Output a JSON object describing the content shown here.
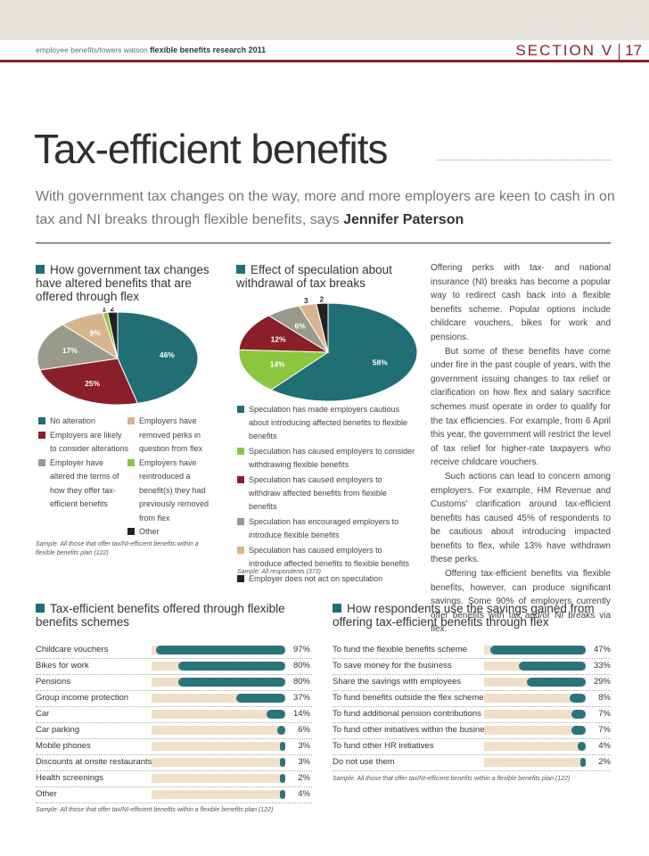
{
  "header": {
    "publication": "employee benefits/towers watson",
    "report": "flexible benefits research 2011",
    "section": "SECTION V",
    "page": "17"
  },
  "title": "Tax-efficient benefits",
  "standfirst": {
    "text": "With government tax changes on the way, more and more employers are keen to cash in on tax and NI breaks through flexible benefits, says",
    "author": "Jennifer Paterson"
  },
  "chart_data": [
    {
      "type": "pie",
      "title": "How government tax changes have altered benefits that are offered through flex",
      "slices": [
        {
          "label": "No alteration",
          "value": 46,
          "color": "#1f6f75",
          "text": "46%"
        },
        {
          "label": "Employers are likely to consider alterations",
          "value": 25,
          "color": "#8a1f2a",
          "text": "25%"
        },
        {
          "label": "Employer have altered the terms of how they offer tax-efficient benefits",
          "value": 17,
          "color": "#9a9a8c",
          "text": "17%"
        },
        {
          "label": "Employers have removed perks in question from flex",
          "value": 9,
          "color": "#d8b48e",
          "text": "9%"
        },
        {
          "label": "Employers have reintroduced a benefit(s) they had previously removed from flex",
          "value": 1,
          "color": "#8cc63f",
          "text": "1"
        },
        {
          "label": "Other",
          "value": 2,
          "color": "#222222",
          "text": "2"
        }
      ],
      "sample": "Sample: All those that offer tax/NI-efficient benefits within a flexible benefits plan (122)"
    },
    {
      "type": "pie",
      "title": "Effect of speculation about withdrawal of tax breaks",
      "slices": [
        {
          "label": "Speculation has made employers cautious about introducing affected benefits to flexible benefits",
          "value": 58,
          "color": "#1f6f75",
          "text": "58%"
        },
        {
          "label": "Speculation has caused employers to consider withdrawing flexible benefits",
          "value": 14,
          "color": "#8cc63f",
          "text": "14%"
        },
        {
          "label": "Speculation has caused employers to withdraw affected benefits from flexible benefits",
          "value": 12,
          "color": "#8a1f2a",
          "text": "12%"
        },
        {
          "label": "Speculation has encouraged employers to introduce flexible benefits",
          "value": 6,
          "color": "#9a9a8c",
          "text": "6%"
        },
        {
          "label": "Speculation has caused employers to introduce affected benefits to flexible benefits",
          "value": 3,
          "color": "#d8b48e",
          "text": "3"
        },
        {
          "label": "Employer does not act on speculation",
          "value": 2,
          "color": "#222222",
          "text": "2"
        }
      ],
      "sample": "Sample: All respondents (373)"
    },
    {
      "type": "bar",
      "title": "Tax-efficient benefits offered through flexible benefits schemes",
      "categories": [
        "Childcare vouchers",
        "Bikes for work",
        "Pensions",
        "Group income protection",
        "Car",
        "Car parking",
        "Mobile phones",
        "Discounts at onsite restaurants",
        "Health screenings",
        "Other"
      ],
      "values": [
        97,
        80,
        80,
        37,
        14,
        6,
        3,
        3,
        2,
        4
      ],
      "unit": "%",
      "xlim": [
        0,
        100
      ],
      "sample": "Sample: All those that offer tax/NI-efficient benefits within a flexible benefits plan (122)"
    },
    {
      "type": "bar",
      "title": "How respondents use the savings gained from offering tax-efficient benefits through flex",
      "categories": [
        "To fund the flexible benefits scheme",
        "To save money for the business",
        "Share the savings with employees",
        "To fund benefits outside the flex scheme",
        "To fund additional pension contributions",
        "To fund other initiatives within the business",
        "To fund other HR initiatives",
        "Do not use them"
      ],
      "values": [
        47,
        33,
        29,
        8,
        7,
        7,
        4,
        2
      ],
      "unit": "%",
      "xlim": [
        0,
        50
      ],
      "sample": "Sample: All those that offer tax/NI-efficient benefits within a flexible benefits plan (122)"
    }
  ],
  "legend1": {
    "col1": [
      "No alteration",
      "Employers are likely to consider alterations",
      "Employer have altered the terms of how they offer tax-efficient benefits"
    ],
    "col2": [
      "Employers have removed perks in question from flex",
      "Employers have reintroduced a benefit(s) they had previously removed from flex",
      "Other"
    ]
  },
  "body": [
    "Offering perks with tax- and national insurance (NI) breaks has become a popular way to redirect cash back into a flexible benefits scheme. Popular options include childcare vouchers, bikes for work and pensions.",
    "But some of these benefits have come under fire in the past couple of years, with the government issuing changes to tax relief or clarification on how flex and salary sacrifice schemes must operate in order to qualify for the tax efficiencies. For example, from 6 April this year, the government will restrict the level of tax relief for higher-rate taxpayers who receive childcare vouchers.",
    "Such actions can lead to concern among employers. For example, HM Revenue and Customs' clarification around tax-efficient benefits has caused 45% of respondents to be cautious about introducing impacted benefits to flex, while 13% have withdrawn these perks.",
    "Offering tax-efficient benefits via flexible benefits, however, can produce significant savings. Some 90% of employers currently offer benefits with tax and/or NI breaks via flex."
  ]
}
